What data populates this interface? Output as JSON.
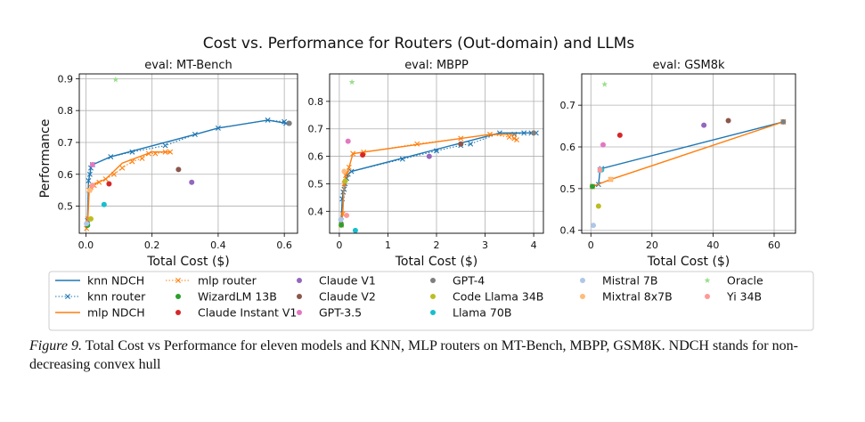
{
  "figure": {
    "suptitle": "Cost vs. Performance for Routers (Out-domain) and LLMs",
    "ylabel": "Performance",
    "caption_label": "Figure 9.",
    "caption_text": " Total Cost vs Performance for eleven models and KNN, MLP routers on MT-Bench, MBPP, GSM8K. NDCH stands for non-decreasing convex hull"
  },
  "colors": {
    "knn": "#1f77b4",
    "mlp": "#ff7f0e",
    "grid": "#b0b0b0"
  },
  "legend": [
    {
      "label": "knn NDCH",
      "kind": "line",
      "style": "solid",
      "color": "#1f77b4"
    },
    {
      "label": "knn router",
      "kind": "line",
      "style": "dotted",
      "color": "#1f77b4",
      "marker": "x"
    },
    {
      "label": "mlp NDCH",
      "kind": "line",
      "style": "solid",
      "color": "#ff7f0e"
    },
    {
      "label": "mlp router",
      "kind": "line",
      "style": "dotted",
      "color": "#ff7f0e",
      "marker": "x"
    },
    {
      "label": "WizardLM 13B",
      "kind": "dot",
      "color": "#2ca02c"
    },
    {
      "label": "Claude Instant V1",
      "kind": "dot",
      "color": "#d62728"
    },
    {
      "label": "Claude V1",
      "kind": "dot",
      "color": "#9467bd"
    },
    {
      "label": "Claude V2",
      "kind": "dot",
      "color": "#8c564b"
    },
    {
      "label": "GPT-3.5",
      "kind": "dot",
      "color": "#e377c2"
    },
    {
      "label": "GPT-4",
      "kind": "dot",
      "color": "#7f7f7f"
    },
    {
      "label": "Code Llama 34B",
      "kind": "dot",
      "color": "#bcbd22"
    },
    {
      "label": "Llama 70B",
      "kind": "dot",
      "color": "#17becf"
    },
    {
      "label": "Mistral 7B",
      "kind": "dot",
      "color": "#aec7e8"
    },
    {
      "label": "Mixtral 8x7B",
      "kind": "dot",
      "color": "#ffbb78"
    },
    {
      "label": "Oracle",
      "kind": "star",
      "color": "#98df8a"
    },
    {
      "label": "Yi 34B",
      "kind": "dot",
      "color": "#ff9896"
    }
  ],
  "chart_data": [
    {
      "type": "scatter",
      "title": "eval: MT-Bench",
      "xlabel": "Total Cost ($)",
      "ylabel": "Performance",
      "xlim": [
        -0.02,
        0.64
      ],
      "ylim": [
        0.415,
        0.915
      ],
      "xticks": [
        0.0,
        0.2,
        0.4,
        0.6
      ],
      "xtick_labels": [
        "0.0",
        "0.2",
        "0.4",
        "0.6"
      ],
      "yticks": [
        0.5,
        0.6,
        0.7,
        0.8,
        0.9
      ],
      "ytick_labels": [
        "0.5",
        "0.6",
        "0.7",
        "0.8",
        "0.9"
      ],
      "series": [
        {
          "name": "knn router",
          "x": [
            0.005,
            0.008,
            0.012,
            0.015,
            0.02,
            0.075,
            0.14,
            0.24,
            0.33,
            0.4,
            0.55,
            0.6,
            0.605
          ],
          "y": [
            0.455,
            0.58,
            0.6,
            0.62,
            0.63,
            0.655,
            0.67,
            0.69,
            0.725,
            0.745,
            0.77,
            0.765,
            0.76
          ]
        },
        {
          "name": "knn NDCH",
          "x": [
            0.005,
            0.008,
            0.012,
            0.015,
            0.02,
            0.075,
            0.33,
            0.4,
            0.55,
            0.605
          ],
          "y": [
            0.455,
            0.58,
            0.6,
            0.62,
            0.63,
            0.655,
            0.725,
            0.745,
            0.77,
            0.76
          ]
        },
        {
          "name": "mlp router",
          "x": [
            0.002,
            0.006,
            0.01,
            0.015,
            0.025,
            0.04,
            0.06,
            0.085,
            0.11,
            0.14,
            0.17,
            0.19,
            0.21,
            0.24,
            0.255
          ],
          "y": [
            0.43,
            0.46,
            0.55,
            0.56,
            0.565,
            0.575,
            0.585,
            0.6,
            0.62,
            0.64,
            0.65,
            0.665,
            0.665,
            0.67,
            0.67
          ]
        },
        {
          "name": "mlp NDCH",
          "x": [
            0.002,
            0.006,
            0.01,
            0.015,
            0.025,
            0.06,
            0.11,
            0.2,
            0.255
          ],
          "y": [
            0.43,
            0.46,
            0.55,
            0.56,
            0.57,
            0.585,
            0.635,
            0.67,
            0.67
          ]
        }
      ],
      "models": [
        {
          "name": "WizardLM 13B",
          "x": 0.005,
          "y": 0.44
        },
        {
          "name": "Claude Instant V1",
          "x": 0.07,
          "y": 0.57
        },
        {
          "name": "Claude V1",
          "x": 0.32,
          "y": 0.575
        },
        {
          "name": "Claude V2",
          "x": 0.28,
          "y": 0.615
        },
        {
          "name": "GPT-3.5",
          "x": 0.02,
          "y": 0.63
        },
        {
          "name": "GPT-4",
          "x": 0.615,
          "y": 0.76
        },
        {
          "name": "Code Llama 34B",
          "x": 0.015,
          "y": 0.46
        },
        {
          "name": "Llama 70B",
          "x": 0.055,
          "y": 0.505
        },
        {
          "name": "Mistral 7B",
          "x": 0.002,
          "y": 0.445
        },
        {
          "name": "Mixtral 8x7B",
          "x": 0.012,
          "y": 0.55
        },
        {
          "name": "Yi 34B",
          "x": 0.02,
          "y": 0.565
        },
        {
          "name": "Oracle",
          "x": 0.09,
          "y": 0.897
        }
      ]
    },
    {
      "type": "scatter",
      "title": "eval: MBPP",
      "xlabel": "Total Cost ($)",
      "xlim": [
        -0.2,
        4.2
      ],
      "ylim": [
        0.32,
        0.9
      ],
      "xticks": [
        0,
        1,
        2,
        3,
        4
      ],
      "xtick_labels": [
        "0",
        "1",
        "2",
        "3",
        "4"
      ],
      "yticks": [
        0.4,
        0.5,
        0.6,
        0.7,
        0.8
      ],
      "ytick_labels": [
        "0.4",
        "0.5",
        "0.6",
        "0.7",
        "0.8"
      ],
      "series": [
        {
          "name": "knn router",
          "x": [
            0.04,
            0.06,
            0.08,
            0.1,
            0.12,
            0.15,
            0.18,
            0.25,
            1.3,
            2.0,
            2.5,
            2.7,
            3.3,
            3.6,
            3.8,
            3.95,
            4.05
          ],
          "y": [
            0.365,
            0.445,
            0.47,
            0.48,
            0.5,
            0.52,
            0.535,
            0.545,
            0.59,
            0.62,
            0.64,
            0.645,
            0.685,
            0.68,
            0.685,
            0.685,
            0.685
          ]
        },
        {
          "name": "knn NDCH",
          "x": [
            0.04,
            0.06,
            0.08,
            0.1,
            0.12,
            0.15,
            0.18,
            0.25,
            3.3,
            4.05
          ],
          "y": [
            0.365,
            0.445,
            0.47,
            0.48,
            0.5,
            0.52,
            0.535,
            0.545,
            0.685,
            0.685
          ]
        },
        {
          "name": "mlp router",
          "x": [
            0.04,
            0.07,
            0.1,
            0.13,
            0.16,
            0.2,
            0.28,
            0.5,
            1.6,
            2.5,
            3.1,
            3.5,
            3.6,
            3.65
          ],
          "y": [
            0.35,
            0.39,
            0.5,
            0.53,
            0.54,
            0.56,
            0.61,
            0.615,
            0.645,
            0.665,
            0.68,
            0.67,
            0.665,
            0.66
          ]
        },
        {
          "name": "mlp NDCH",
          "x": [
            0.04,
            0.07,
            0.1,
            0.13,
            0.16,
            0.2,
            0.28,
            3.1,
            3.65
          ],
          "y": [
            0.35,
            0.39,
            0.5,
            0.53,
            0.54,
            0.56,
            0.61,
            0.68,
            0.68
          ]
        }
      ],
      "models": [
        {
          "name": "WizardLM 13B",
          "x": 0.04,
          "y": 0.35
        },
        {
          "name": "Claude Instant V1",
          "x": 0.48,
          "y": 0.605
        },
        {
          "name": "Claude V1",
          "x": 1.85,
          "y": 0.6
        },
        {
          "name": "Claude V2",
          "x": 2.5,
          "y": 0.645
        },
        {
          "name": "GPT-3.5",
          "x": 0.18,
          "y": 0.655
        },
        {
          "name": "GPT-4",
          "x": 4.0,
          "y": 0.685
        },
        {
          "name": "Code Llama 34B",
          "x": 0.12,
          "y": 0.51
        },
        {
          "name": "Llama 70B",
          "x": 0.33,
          "y": 0.33
        },
        {
          "name": "Mistral 7B",
          "x": 0.03,
          "y": 0.37
        },
        {
          "name": "Mixtral 8x7B",
          "x": 0.1,
          "y": 0.545
        },
        {
          "name": "Yi 34B",
          "x": 0.15,
          "y": 0.385
        },
        {
          "name": "Oracle",
          "x": 0.26,
          "y": 0.87
        }
      ]
    },
    {
      "type": "scatter",
      "title": "eval: GSM8k",
      "xlabel": "Total Cost ($)",
      "xlim": [
        -3.0,
        67.0
      ],
      "ylim": [
        0.393,
        0.775
      ],
      "xticks": [
        0,
        20,
        40,
        60
      ],
      "xtick_labels": [
        "0",
        "20",
        "40",
        "60"
      ],
      "yticks": [
        0.4,
        0.5,
        0.6,
        0.7
      ],
      "ytick_labels": [
        "0.4",
        "0.5",
        "0.6",
        "0.7"
      ],
      "series": [
        {
          "name": "knn router",
          "x": [
            0.5,
            2.5,
            3.0,
            3.5,
            63.0
          ],
          "y": [
            0.505,
            0.51,
            0.545,
            0.548,
            0.66
          ]
        },
        {
          "name": "knn NDCH",
          "x": [
            0.5,
            2.5,
            3.0,
            3.5,
            63.0
          ],
          "y": [
            0.505,
            0.51,
            0.545,
            0.548,
            0.66
          ]
        },
        {
          "name": "mlp router",
          "x": [
            0.5,
            6.5,
            63.0
          ],
          "y": [
            0.505,
            0.522,
            0.66
          ]
        },
        {
          "name": "mlp NDCH",
          "x": [
            0.5,
            6.5,
            63.0
          ],
          "y": [
            0.505,
            0.522,
            0.66
          ]
        }
      ],
      "models": [
        {
          "name": "WizardLM 13B",
          "x": 0.5,
          "y": 0.505
        },
        {
          "name": "Claude Instant V1",
          "x": 9.5,
          "y": 0.628
        },
        {
          "name": "Claude V1",
          "x": 37.0,
          "y": 0.652
        },
        {
          "name": "Claude V2",
          "x": 45.0,
          "y": 0.663
        },
        {
          "name": "GPT-3.5",
          "x": 4.0,
          "y": 0.605
        },
        {
          "name": "GPT-4",
          "x": 63.0,
          "y": 0.66
        },
        {
          "name": "Code Llama 34B",
          "x": 2.5,
          "y": 0.458
        },
        {
          "name": "Llama 70B",
          "x": 3.5,
          "y": 0.545
        },
        {
          "name": "Mistral 7B",
          "x": 0.8,
          "y": 0.412
        },
        {
          "name": "Mixtral 8x7B",
          "x": 6.5,
          "y": 0.522
        },
        {
          "name": "Yi 34B",
          "x": 3.0,
          "y": 0.545
        },
        {
          "name": "Oracle",
          "x": 4.5,
          "y": 0.75
        }
      ]
    }
  ]
}
